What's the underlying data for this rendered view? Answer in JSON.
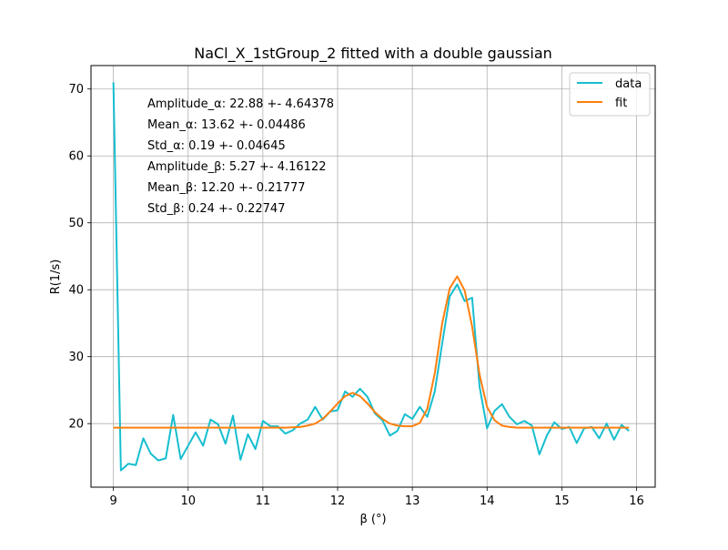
{
  "chart_data": {
    "type": "line",
    "title": "NaCl_X_1stGroup_2 fitted with a double gaussian",
    "xlabel": "β (°)",
    "ylabel": "R(1/s)",
    "xlim": [
      8.7,
      16.25
    ],
    "ylim": [
      10.5,
      73.5
    ],
    "xticks": [
      9,
      10,
      11,
      12,
      13,
      14,
      15,
      16
    ],
    "yticks": [
      20,
      30,
      40,
      50,
      60,
      70
    ],
    "grid": true,
    "legend_position": "top-right",
    "annotations": [
      "Amplitude_α: 22.88  +- 4.64378",
      "Mean_α: 13.62 +- 0.04486",
      "Std_α: 0.19 +- 0.04645",
      "Amplitude_β: 5.27 +- 4.16122",
      "Mean_β: 12.20 +- 0.21777",
      "Std_β: 0.24 +- 0.22747"
    ],
    "series": [
      {
        "name": "data",
        "color": "#17becf",
        "x": [
          9.0,
          9.1,
          9.2,
          9.3,
          9.4,
          9.5,
          9.6,
          9.7,
          9.8,
          9.9,
          10.0,
          10.1,
          10.2,
          10.3,
          10.4,
          10.5,
          10.6,
          10.7,
          10.8,
          10.9,
          11.0,
          11.1,
          11.2,
          11.3,
          11.4,
          11.5,
          11.6,
          11.7,
          11.8,
          11.9,
          12.0,
          12.1,
          12.2,
          12.3,
          12.4,
          12.5,
          12.6,
          12.7,
          12.8,
          12.9,
          13.0,
          13.1,
          13.2,
          13.3,
          13.4,
          13.5,
          13.6,
          13.7,
          13.8,
          13.9,
          14.0,
          14.1,
          14.2,
          14.3,
          14.4,
          14.5,
          14.6,
          14.7,
          14.8,
          14.9,
          15.0,
          15.1,
          15.2,
          15.3,
          15.4,
          15.5,
          15.6,
          15.7,
          15.8,
          15.9
        ],
        "y": [
          71.0,
          13.0,
          14.0,
          13.8,
          17.8,
          15.5,
          14.5,
          14.8,
          21.3,
          14.7,
          16.7,
          18.7,
          16.7,
          20.6,
          19.9,
          17.0,
          21.2,
          14.6,
          18.4,
          16.2,
          20.4,
          19.6,
          19.6,
          18.5,
          19.0,
          20.0,
          20.6,
          22.5,
          20.6,
          21.8,
          22.0,
          24.8,
          24.0,
          25.2,
          24.0,
          21.5,
          20.5,
          18.2,
          18.9,
          21.4,
          20.7,
          22.5,
          21.0,
          24.8,
          32.0,
          39.0,
          40.8,
          38.3,
          38.8,
          25.5,
          19.3,
          21.9,
          22.9,
          21.0,
          19.9,
          20.4,
          19.7,
          15.4,
          18.2,
          20.2,
          19.2,
          19.5,
          17.1,
          19.3,
          19.5,
          17.8,
          20.0,
          17.6,
          19.8,
          18.9
        ]
      },
      {
        "name": "fit",
        "color": "#ff7f0e",
        "x": [
          9.0,
          9.1,
          9.2,
          9.3,
          9.4,
          9.5,
          9.6,
          9.7,
          9.8,
          9.9,
          10.0,
          10.1,
          10.2,
          10.3,
          10.4,
          10.5,
          10.6,
          10.7,
          10.8,
          10.9,
          11.0,
          11.1,
          11.2,
          11.3,
          11.4,
          11.5,
          11.6,
          11.7,
          11.8,
          11.9,
          12.0,
          12.1,
          12.2,
          12.3,
          12.4,
          12.5,
          12.6,
          12.7,
          12.8,
          12.9,
          13.0,
          13.1,
          13.2,
          13.3,
          13.4,
          13.5,
          13.6,
          13.7,
          13.8,
          13.9,
          14.0,
          14.1,
          14.2,
          14.3,
          14.4,
          14.5,
          14.6,
          14.7,
          14.8,
          14.9,
          15.0,
          15.1,
          15.2,
          15.3,
          15.4,
          15.5,
          15.6,
          15.7,
          15.8,
          15.9
        ],
        "y": [
          19.4,
          19.4,
          19.4,
          19.4,
          19.4,
          19.4,
          19.4,
          19.4,
          19.4,
          19.4,
          19.4,
          19.4,
          19.4,
          19.4,
          19.4,
          19.4,
          19.4,
          19.4,
          19.4,
          19.4,
          19.4,
          19.4,
          19.4,
          19.4,
          19.45,
          19.5,
          19.7,
          20.0,
          20.7,
          21.8,
          23.0,
          24.1,
          24.6,
          24.1,
          23.0,
          21.7,
          20.7,
          20.0,
          19.7,
          19.6,
          19.6,
          20.1,
          22.2,
          27.5,
          35.0,
          40.2,
          42.0,
          39.9,
          34.5,
          27.3,
          22.5,
          20.5,
          19.7,
          19.5,
          19.4,
          19.4,
          19.4,
          19.4,
          19.4,
          19.4,
          19.4,
          19.4,
          19.4,
          19.4,
          19.4,
          19.4,
          19.4,
          19.4,
          19.4,
          19.4
        ]
      }
    ]
  }
}
